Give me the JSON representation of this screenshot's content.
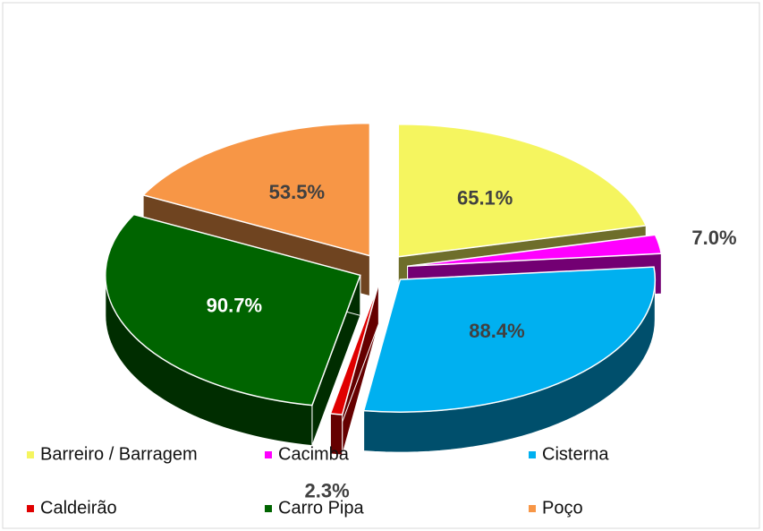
{
  "chart_data": {
    "type": "pie3d",
    "categories": [
      "Barreiro / Barragem",
      "Cacimba",
      "Cisterna",
      "Caldeirão",
      "Carro Pipa",
      "Poço"
    ],
    "values": [
      65.1,
      7.0,
      88.4,
      2.3,
      90.7,
      53.5
    ],
    "value_labels": [
      "65.1%",
      "7.0%",
      "88.4%",
      "2.3%",
      "90.7%",
      "53.5%"
    ],
    "colors": [
      "#f5f55f",
      "#ff00ff",
      "#00b0f0",
      "#e00000",
      "#006400",
      "#f79646"
    ],
    "legend": "bottom"
  }
}
